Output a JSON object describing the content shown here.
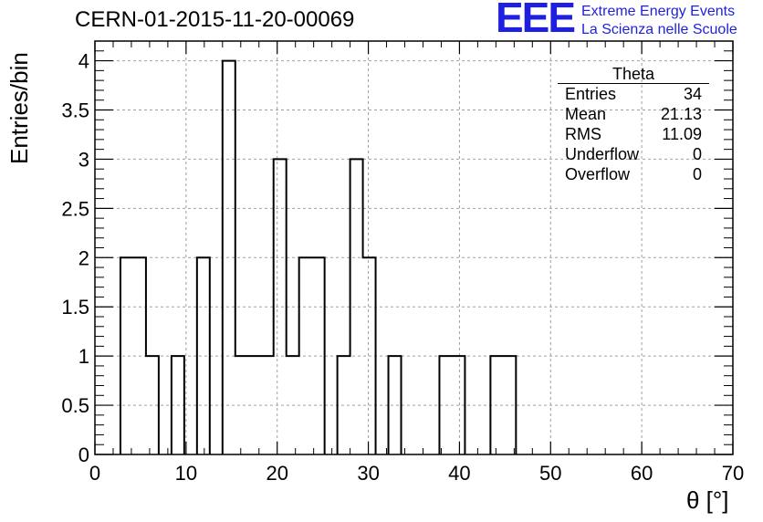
{
  "title": "CERN-01-2015-11-20-00069",
  "logo": {
    "mark": "EEE",
    "line1": "Extreme Energy Events",
    "line2": "La Scienza nelle Scuole"
  },
  "stats": {
    "title": "Theta",
    "rows": [
      {
        "label": "Entries",
        "value": "34"
      },
      {
        "label": "Mean",
        "value": "21.13"
      },
      {
        "label": "RMS",
        "value": "11.09"
      },
      {
        "label": "Underflow",
        "value": "0"
      },
      {
        "label": "Overflow",
        "value": "0"
      }
    ]
  },
  "chart_data": {
    "type": "histogram",
    "xlabel": "θ [°]",
    "ylabel": "Entries/bin",
    "xlim": [
      0,
      70
    ],
    "ylim": [
      0,
      4.2
    ],
    "grid": true,
    "x_ticks": [
      "0",
      "10",
      "20",
      "30",
      "40",
      "50",
      "60",
      "70"
    ],
    "y_ticks": [
      "0",
      "0.5",
      "1",
      "1.5",
      "2",
      "2.5",
      "3",
      "3.5",
      "4"
    ],
    "bins": [
      {
        "x0": 2.8,
        "x1": 5.6,
        "value": 2
      },
      {
        "x0": 5.6,
        "x1": 7.0,
        "value": 1
      },
      {
        "x0": 8.4,
        "x1": 9.8,
        "value": 1
      },
      {
        "x0": 11.2,
        "x1": 12.6,
        "value": 2
      },
      {
        "x0": 14.0,
        "x1": 15.4,
        "value": 4
      },
      {
        "x0": 15.4,
        "x1": 19.6,
        "value": 1
      },
      {
        "x0": 19.6,
        "x1": 21.0,
        "value": 3
      },
      {
        "x0": 21.0,
        "x1": 22.4,
        "value": 1
      },
      {
        "x0": 22.4,
        "x1": 25.2,
        "value": 2
      },
      {
        "x0": 26.6,
        "x1": 28.0,
        "value": 1
      },
      {
        "x0": 28.0,
        "x1": 29.4,
        "value": 3
      },
      {
        "x0": 29.4,
        "x1": 30.8,
        "value": 2
      },
      {
        "x0": 32.2,
        "x1": 33.6,
        "value": 1
      },
      {
        "x0": 37.8,
        "x1": 40.6,
        "value": 1
      },
      {
        "x0": 43.4,
        "x1": 46.2,
        "value": 1
      }
    ]
  }
}
